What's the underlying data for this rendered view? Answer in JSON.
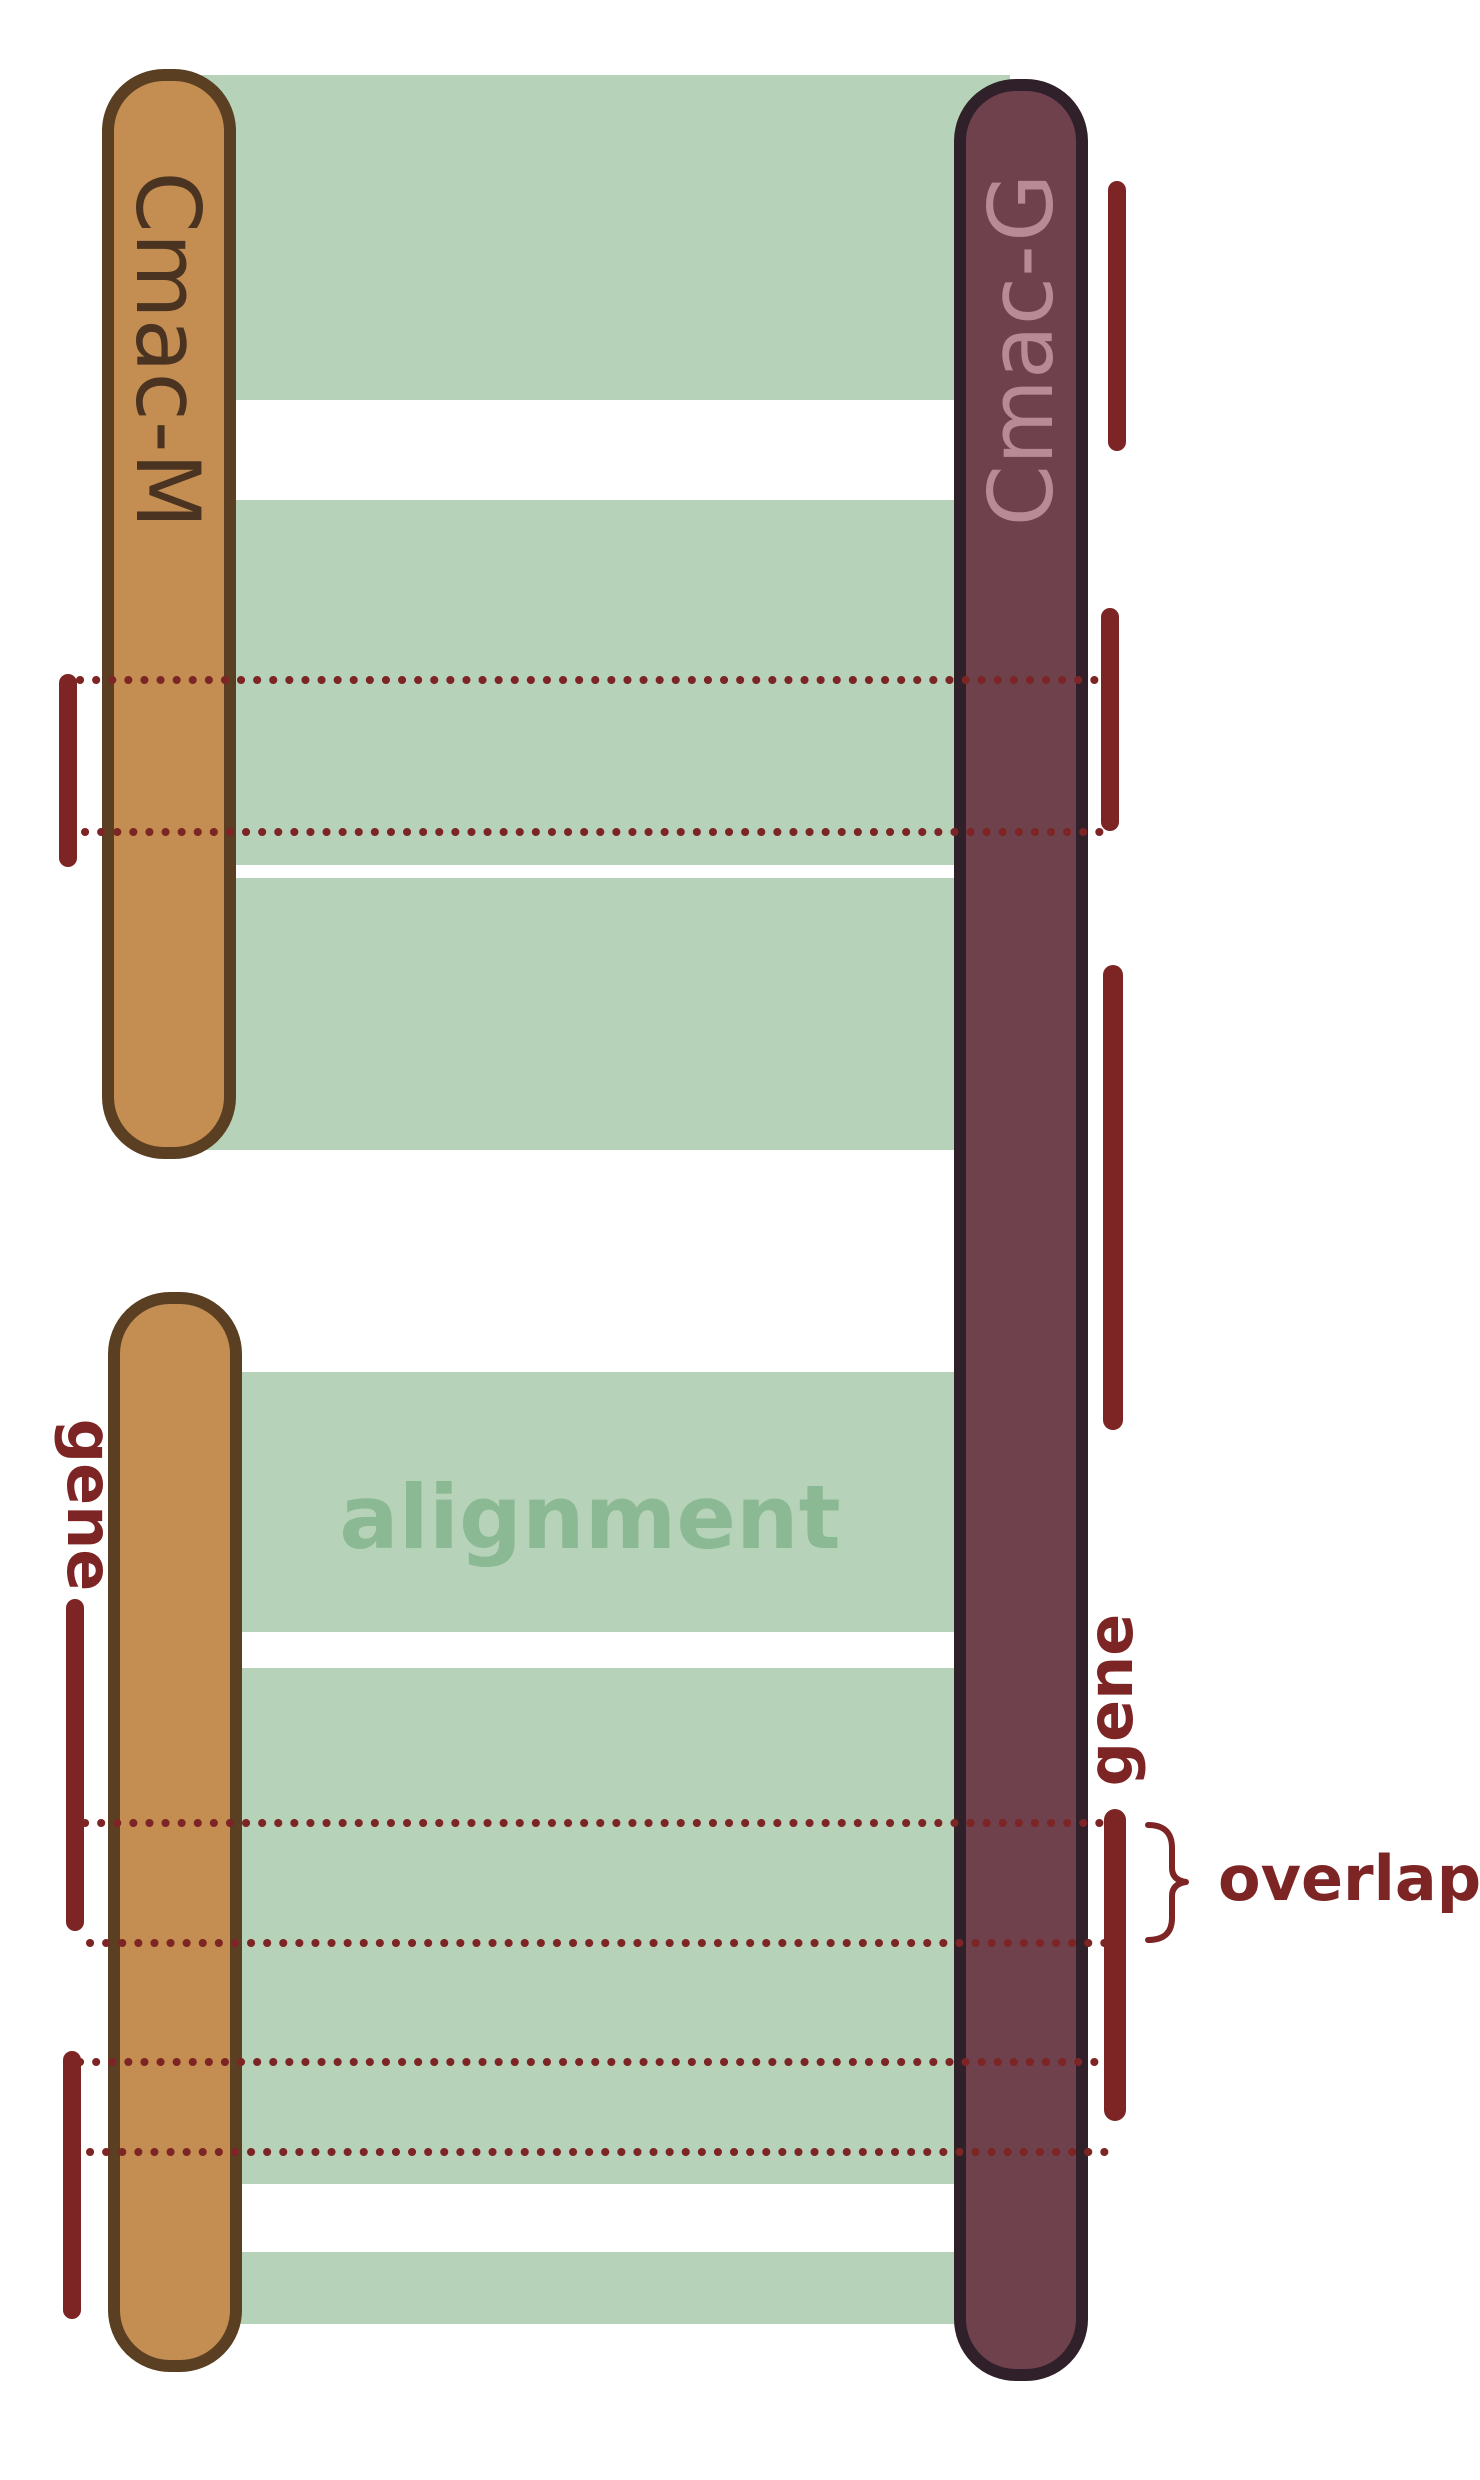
{
  "labels": {
    "chrom_m": "Cmac-M",
    "chrom_g": "Cmac-G",
    "alignment": "alignment",
    "gene_left": "gene",
    "gene_right": "gene",
    "overlap": "overlap"
  },
  "colors": {
    "alignment_fill": "#b6d3b9",
    "alignment_text": "#8bb993",
    "chrom_m_fill": "#c48e52",
    "chrom_m_stroke": "#5b3f22",
    "chrom_g_fill": "#6f414d",
    "chrom_g_stroke": "#30202a",
    "chrom_g_text": "#b88a96",
    "gene": "#7d2424",
    "background": "#ffffff"
  }
}
